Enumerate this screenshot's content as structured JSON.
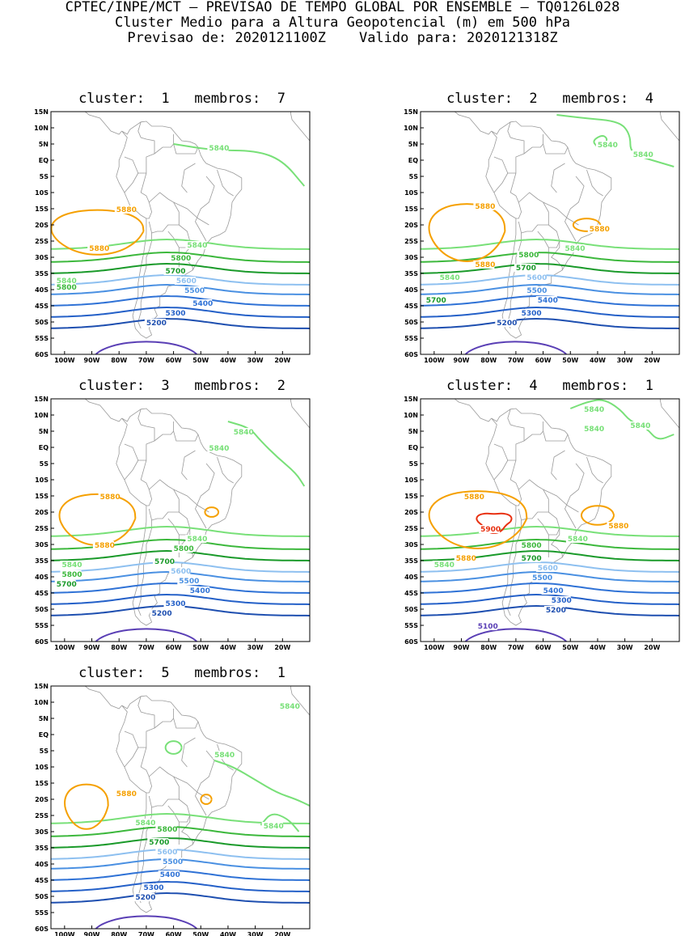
{
  "header": {
    "line1": "CPTEC/INPE/MCT – PREVISAO DE TEMPO GLOBAL POR ENSEMBLE – TQ0126L028",
    "line2": "Cluster Medio para a Altura Geopotencial (m) em 500 hPa",
    "line3": "Previsao de: 2020121100Z    Valido para: 2020121318Z"
  },
  "axes": {
    "lat_labels": [
      "15N",
      "10N",
      "5N",
      "EQ",
      "5S",
      "10S",
      "15S",
      "20S",
      "25S",
      "30S",
      "35S",
      "40S",
      "45S",
      "50S",
      "55S",
      "60S"
    ],
    "lon_labels": [
      "100W",
      "90W",
      "80W",
      "70W",
      "60W",
      "50W",
      "40W",
      "30W",
      "20W"
    ]
  },
  "colors": {
    "c5100": "#5a3fb5",
    "c5200": "#1e4fb0",
    "c5300": "#2460c8",
    "c5400": "#2f72d6",
    "c5500": "#4a90e2",
    "c5600": "#8ec0f0",
    "c5700": "#1a9a2a",
    "c5800": "#3cb83c",
    "c5840": "#78e078",
    "c5880": "#f5a000",
    "c5900": "#e83010",
    "land": "#9a9a9a"
  },
  "panels": [
    {
      "title": "cluster:  1   membros:  7",
      "labels": [
        {
          "text": "5840",
          "color": "#78e078",
          "lon": -47,
          "lat": 3
        },
        {
          "text": "5880",
          "color": "#f5a000",
          "lon": -81,
          "lat": -16
        },
        {
          "text": "5880",
          "color": "#f5a000",
          "lon": -91,
          "lat": -28
        },
        {
          "text": "5840",
          "color": "#78e078",
          "lon": -55,
          "lat": -27
        },
        {
          "text": "5800",
          "color": "#3cb83c",
          "lon": -61,
          "lat": -31
        },
        {
          "text": "5700",
          "color": "#1a9a2a",
          "lon": -63,
          "lat": -35
        },
        {
          "text": "5600",
          "color": "#8ec0f0",
          "lon": -59,
          "lat": -38
        },
        {
          "text": "5500",
          "color": "#4a90e2",
          "lon": -56,
          "lat": -41
        },
        {
          "text": "5400",
          "color": "#2f72d6",
          "lon": -53,
          "lat": -45
        },
        {
          "text": "5300",
          "color": "#2460c8",
          "lon": -63,
          "lat": -48
        },
        {
          "text": "5200",
          "color": "#1e4fb0",
          "lon": -70,
          "lat": -51
        },
        {
          "text": "5840",
          "color": "#78e078",
          "lon": -103,
          "lat": -38
        },
        {
          "text": "5800",
          "color": "#3cb83c",
          "lon": -103,
          "lat": -40
        }
      ]
    },
    {
      "title": "cluster:  2   membros:  4",
      "labels": [
        {
          "text": "5840",
          "color": "#78e078",
          "lon": -40,
          "lat": 4
        },
        {
          "text": "5840",
          "color": "#78e078",
          "lon": -27,
          "lat": 1
        },
        {
          "text": "5880",
          "color": "#f5a000",
          "lon": -85,
          "lat": -15
        },
        {
          "text": "5880",
          "color": "#f5a000",
          "lon": -43,
          "lat": -22
        },
        {
          "text": "5880",
          "color": "#f5a000",
          "lon": -85,
          "lat": -33
        },
        {
          "text": "5840",
          "color": "#78e078",
          "lon": -52,
          "lat": -28
        },
        {
          "text": "5800",
          "color": "#3cb83c",
          "lon": -69,
          "lat": -30
        },
        {
          "text": "5700",
          "color": "#1a9a2a",
          "lon": -70,
          "lat": -34
        },
        {
          "text": "5840",
          "color": "#78e078",
          "lon": -98,
          "lat": -37
        },
        {
          "text": "5600",
          "color": "#8ec0f0",
          "lon": -66,
          "lat": -37
        },
        {
          "text": "5500",
          "color": "#4a90e2",
          "lon": -66,
          "lat": -41
        },
        {
          "text": "5400",
          "color": "#2f72d6",
          "lon": -62,
          "lat": -44
        },
        {
          "text": "5700",
          "color": "#1a9a2a",
          "lon": -103,
          "lat": -44
        },
        {
          "text": "5300",
          "color": "#2460c8",
          "lon": -68,
          "lat": -48
        },
        {
          "text": "5200",
          "color": "#1e4fb0",
          "lon": -77,
          "lat": -51
        }
      ]
    },
    {
      "title": "cluster:  3   membros:  2",
      "labels": [
        {
          "text": "5840",
          "color": "#78e078",
          "lon": -38,
          "lat": 4
        },
        {
          "text": "5840",
          "color": "#78e078",
          "lon": -47,
          "lat": -1
        },
        {
          "text": "5880",
          "color": "#f5a000",
          "lon": -87,
          "lat": -16
        },
        {
          "text": "5880",
          "color": "#f5a000",
          "lon": -89,
          "lat": -31
        },
        {
          "text": "5840",
          "color": "#78e078",
          "lon": -55,
          "lat": -29
        },
        {
          "text": "5800",
          "color": "#3cb83c",
          "lon": -60,
          "lat": -32
        },
        {
          "text": "5840",
          "color": "#78e078",
          "lon": -101,
          "lat": -37
        },
        {
          "text": "5700",
          "color": "#1a9a2a",
          "lon": -67,
          "lat": -36
        },
        {
          "text": "5800",
          "color": "#3cb83c",
          "lon": -101,
          "lat": -40
        },
        {
          "text": "5600",
          "color": "#8ec0f0",
          "lon": -61,
          "lat": -39
        },
        {
          "text": "5700",
          "color": "#1a9a2a",
          "lon": -103,
          "lat": -43
        },
        {
          "text": "5500",
          "color": "#4a90e2",
          "lon": -58,
          "lat": -42
        },
        {
          "text": "5400",
          "color": "#2f72d6",
          "lon": -54,
          "lat": -45
        },
        {
          "text": "5300",
          "color": "#2460c8",
          "lon": -63,
          "lat": -49
        },
        {
          "text": "5200",
          "color": "#1e4fb0",
          "lon": -68,
          "lat": -52
        }
      ]
    },
    {
      "title": "cluster:  4   membros:  1",
      "labels": [
        {
          "text": "5840",
          "color": "#78e078",
          "lon": -45,
          "lat": 11
        },
        {
          "text": "5840",
          "color": "#78e078",
          "lon": -28,
          "lat": 6
        },
        {
          "text": "5840",
          "color": "#78e078",
          "lon": -45,
          "lat": 5
        },
        {
          "text": "5880",
          "color": "#f5a000",
          "lon": -89,
          "lat": -16
        },
        {
          "text": "5900",
          "color": "#e83010",
          "lon": -83,
          "lat": -26
        },
        {
          "text": "5880",
          "color": "#f5a000",
          "lon": -36,
          "lat": -25
        },
        {
          "text": "5840",
          "color": "#78e078",
          "lon": -51,
          "lat": -29
        },
        {
          "text": "5800",
          "color": "#3cb83c",
          "lon": -68,
          "lat": -31
        },
        {
          "text": "5880",
          "color": "#f5a000",
          "lon": -92,
          "lat": -35
        },
        {
          "text": "5700",
          "color": "#1a9a2a",
          "lon": -68,
          "lat": -35
        },
        {
          "text": "5840",
          "color": "#78e078",
          "lon": -100,
          "lat": -37
        },
        {
          "text": "5600",
          "color": "#8ec0f0",
          "lon": -62,
          "lat": -38
        },
        {
          "text": "5500",
          "color": "#4a90e2",
          "lon": -64,
          "lat": -41
        },
        {
          "text": "5400",
          "color": "#2f72d6",
          "lon": -60,
          "lat": -45
        },
        {
          "text": "5300",
          "color": "#2460c8",
          "lon": -57,
          "lat": -48
        },
        {
          "text": "5200",
          "color": "#1e4fb0",
          "lon": -59,
          "lat": -51
        },
        {
          "text": "5100",
          "color": "#5a3fb5",
          "lon": -84,
          "lat": -56
        }
      ]
    },
    {
      "title": "cluster:  5   membros:  1",
      "labels": [
        {
          "text": "5840",
          "color": "#78e078",
          "lon": -21,
          "lat": 8
        },
        {
          "text": "5840",
          "color": "#78e078",
          "lon": -45,
          "lat": -7
        },
        {
          "text": "5880",
          "color": "#f5a000",
          "lon": -81,
          "lat": -19
        },
        {
          "text": "5840",
          "color": "#78e078",
          "lon": -27,
          "lat": -29
        },
        {
          "text": "5840",
          "color": "#78e078",
          "lon": -74,
          "lat": -28
        },
        {
          "text": "5800",
          "color": "#3cb83c",
          "lon": -66,
          "lat": -30
        },
        {
          "text": "5700",
          "color": "#1a9a2a",
          "lon": -69,
          "lat": -34
        },
        {
          "text": "5600",
          "color": "#8ec0f0",
          "lon": -66,
          "lat": -37
        },
        {
          "text": "5500",
          "color": "#4a90e2",
          "lon": -64,
          "lat": -40
        },
        {
          "text": "5400",
          "color": "#2f72d6",
          "lon": -65,
          "lat": -44
        },
        {
          "text": "5300",
          "color": "#2460c8",
          "lon": -71,
          "lat": -48
        },
        {
          "text": "5200",
          "color": "#1e4fb0",
          "lon": -74,
          "lat": -51
        }
      ]
    }
  ]
}
